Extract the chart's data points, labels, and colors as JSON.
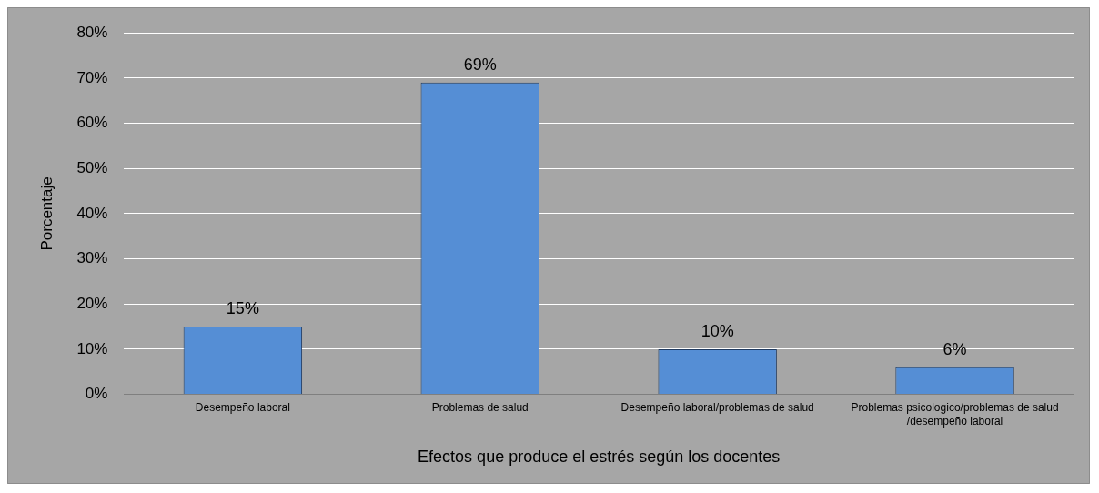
{
  "chart_data": {
    "type": "bar",
    "xlabel": "Efectos que produce el estrés según los docentes",
    "ylabel": "Porcentaje",
    "categories": [
      "Desempeño laboral",
      "Problemas de salud",
      "Desempeño laboral/problemas de salud",
      "Problemas psicologico/problemas de salud /desempeño laboral"
    ],
    "values": [
      15,
      69,
      10,
      6
    ],
    "color": "#558ed5",
    "value_labels": [
      "15%",
      "69%",
      "10%",
      "6%"
    ],
    "ylim": [
      0,
      80
    ],
    "yticks": [
      {
        "value": 0,
        "label": "0%"
      },
      {
        "value": 10,
        "label": "10%"
      },
      {
        "value": 20,
        "label": "20%"
      },
      {
        "value": 30,
        "label": "30%"
      },
      {
        "value": 40,
        "label": "40%"
      },
      {
        "value": 50,
        "label": "50%"
      },
      {
        "value": 60,
        "label": "60%"
      },
      {
        "value": 70,
        "label": "70%"
      },
      {
        "value": 80,
        "label": "80%"
      }
    ],
    "grid": "y",
    "legend": false
  }
}
